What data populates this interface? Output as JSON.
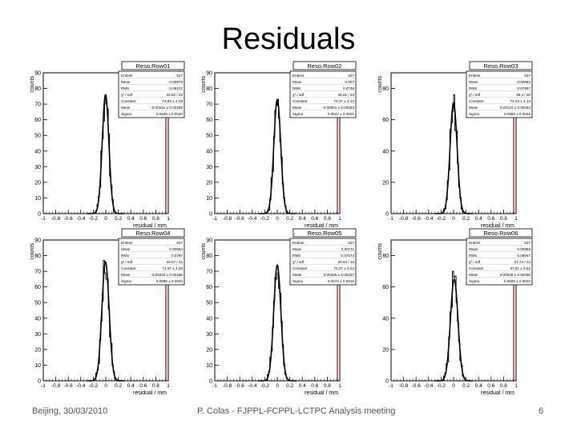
{
  "slide": {
    "title": "Residuals",
    "footer_left": "Beijing, 30/03/2010",
    "footer_center": "P. Colas  -  FJPPL-FCPPL-LCTPC Analysis meeting",
    "page_number": "6"
  },
  "chart_data": [
    {
      "type": "histogram",
      "title": "Reso.Row01",
      "xlabel": "residual / mm",
      "ylabel": "counts",
      "xlim": [
        -1,
        1
      ],
      "ylim": [
        0,
        90
      ],
      "xticks": [
        "-1",
        "-0.8",
        "-0.6",
        "-0.4",
        "-0.2",
        "0",
        "0.2",
        "0.4",
        "0.6",
        "0.8",
        "1"
      ],
      "yticks": [
        "0",
        "10",
        "20",
        "30",
        "40",
        "50",
        "60",
        "70",
        "80",
        "90"
      ],
      "gauss": {
        "mean": -0.004,
        "sigma": 0.053,
        "peak": 76
      },
      "stats": [
        [
          "Entries",
          "527"
        ],
        [
          "Mean",
          "0.00878"
        ],
        [
          "RMS",
          "0.08101"
        ],
        [
          "χ² / ndf",
          "34.82 / 22"
        ],
        [
          "Constant",
          "73.83 ± 4.08"
        ],
        [
          "Mean",
          "-0.00151 ± 0.00259"
        ],
        [
          "Sigma",
          "0.0528 ± 0.0020"
        ]
      ]
    },
    {
      "type": "histogram",
      "title": "Reso.Row02",
      "xlabel": "residual / mm",
      "ylabel": "counts",
      "xlim": [
        -1,
        1
      ],
      "ylim": [
        0,
        90
      ],
      "xticks": [
        "-1",
        "-0.8",
        "-0.6",
        "-0.4",
        "-0.2",
        "0",
        "0.2",
        "0.4",
        "0.6",
        "0.8",
        "1"
      ],
      "yticks": [
        "0",
        "10",
        "20",
        "30",
        "40",
        "50",
        "60",
        "70",
        "80",
        "90"
      ],
      "gauss": {
        "mean": 0.0,
        "sigma": 0.055,
        "peak": 73
      },
      "stats": [
        [
          "Entries",
          "527"
        ],
        [
          "Mean",
          "0.007"
        ],
        [
          "RMS",
          "0.0748"
        ],
        [
          "χ² / ndf",
          "45.81 / 23"
        ],
        [
          "Constant",
          "73.27 ± 4.12"
        ],
        [
          "Mean",
          "-0.00051 ± 0.00253"
        ],
        [
          "Sigma",
          "0.0547 ± 0.0021"
        ]
      ]
    },
    {
      "type": "histogram",
      "title": "Reso.Row03",
      "xlabel": "residual / mm",
      "ylabel": "counts",
      "xlim": [
        -1,
        1
      ],
      "ylim": [
        0,
        90
      ],
      "xticks": [
        "-1",
        "-0.8",
        "-0.6",
        "-0.4",
        "-0.2",
        "0",
        "0.2",
        "0.4",
        "0.6",
        "0.8",
        "1"
      ],
      "yticks": [
        "0",
        "20",
        "40",
        "60",
        "80"
      ],
      "gauss": {
        "mean": 0.0,
        "sigma": 0.056,
        "peak": 71
      },
      "stats": [
        [
          "Entries",
          "527"
        ],
        [
          "Mean",
          "0.00684"
        ],
        [
          "RMS",
          "0.07697"
        ],
        [
          "χ² / ndf",
          "36.4 / 20"
        ],
        [
          "Constant",
          "72.23 ± 4.12"
        ],
        [
          "Mean",
          "0.00124 ± 0.00264"
        ],
        [
          "Sigma",
          "0.0559 ± 0.0022"
        ]
      ]
    },
    {
      "type": "histogram",
      "title": "Reso.Row04",
      "xlabel": "residual / mm",
      "ylabel": "counts",
      "xlim": [
        -1,
        1
      ],
      "ylim": [
        0,
        90
      ],
      "xticks": [
        "-1",
        "-0.8",
        "-0.6",
        "-0.4",
        "-0.2",
        "0",
        "0.2",
        "0.4",
        "0.6",
        "0.8",
        "1"
      ],
      "yticks": [
        "0",
        "10",
        "20",
        "30",
        "40",
        "50",
        "60",
        "70",
        "80",
        "90"
      ],
      "gauss": {
        "mean": -0.005,
        "sigma": 0.058,
        "peak": 76
      },
      "stats": [
        [
          "Entries",
          "527"
        ],
        [
          "Mean",
          "0.00654"
        ],
        [
          "RMS",
          "0.0797"
        ],
        [
          "χ² / ndf",
          "33.57 / 21"
        ],
        [
          "Constant",
          "71.97 ± 4.08"
        ],
        [
          "Mean",
          "-0.00334 ± 0.00266"
        ],
        [
          "Sigma",
          "0.0589 ± 0.0023"
        ]
      ]
    },
    {
      "type": "histogram",
      "title": "Reso.Row05",
      "xlabel": "residual / mm",
      "ylabel": "counts",
      "xlim": [
        -1,
        1
      ],
      "ylim": [
        0,
        90
      ],
      "xticks": [
        "-1",
        "-0.8",
        "-0.6",
        "-0.4",
        "-0.2",
        "0",
        "0.2",
        "0.4",
        "0.6",
        "0.8",
        "1"
      ],
      "yticks": [
        "0",
        "10",
        "20",
        "30",
        "40",
        "50",
        "60",
        "70",
        "80",
        "90"
      ],
      "gauss": {
        "mean": 0.0,
        "sigma": 0.057,
        "peak": 74
      },
      "stats": [
        [
          "Entries",
          "527"
        ],
        [
          "Mean",
          "0.00711"
        ],
        [
          "RMS",
          "0.07573"
        ],
        [
          "χ² / ndf",
          "20.84 / 16"
        ],
        [
          "Constant",
          "72.27 ± 4.04"
        ],
        [
          "Mean",
          "0.00325 ± 0.00257"
        ],
        [
          "Sigma",
          "0.0574 ± 0.0018"
        ]
      ]
    },
    {
      "type": "histogram",
      "title": "Reso.Row06",
      "xlabel": "residual / mm",
      "ylabel": "counts",
      "xlim": [
        -1,
        1
      ],
      "ylim": [
        0,
        90
      ],
      "xticks": [
        "-1",
        "-0.8",
        "-0.6",
        "-0.4",
        "-0.2",
        "0",
        "0.2",
        "0.4",
        "0.6",
        "0.8",
        "1"
      ],
      "yticks": [
        "0",
        "20",
        "40",
        "60",
        "80"
      ],
      "gauss": {
        "mean": 0.01,
        "sigma": 0.06,
        "peak": 65
      },
      "stats": [
        [
          "Entries",
          "527"
        ],
        [
          "Mean",
          "0.00955"
        ],
        [
          "RMS",
          "0.08067"
        ],
        [
          "χ² / ndf",
          "27.74 / 24"
        ],
        [
          "Constant",
          "67.51 ± 3.82"
        ],
        [
          "Mean",
          "0.00536 ± 0.00268"
        ],
        [
          "Sigma",
          "0.0608 ± 0.0023"
        ]
      ]
    }
  ]
}
